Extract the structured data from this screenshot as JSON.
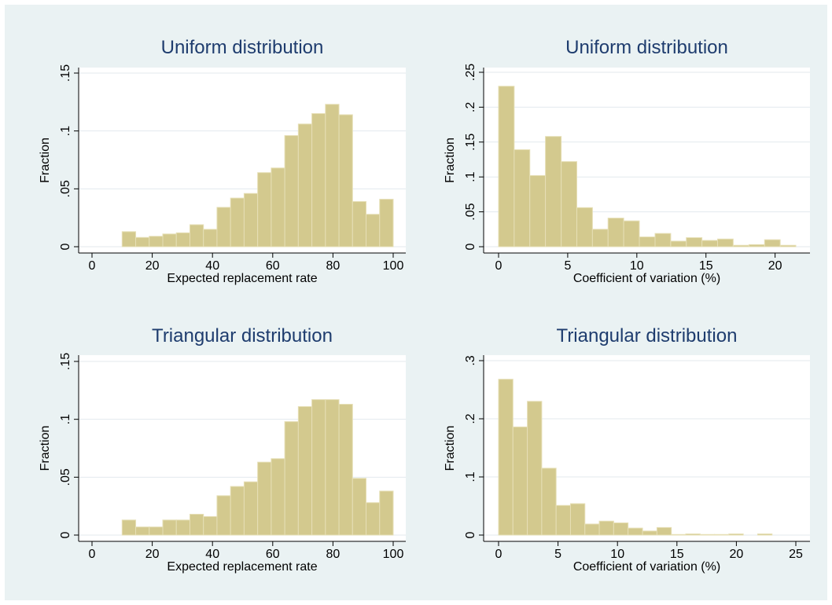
{
  "chart_data": [
    {
      "type": "histogram",
      "title": "Uniform distribution",
      "x_label": "Expected replacement rate",
      "y_label": "Fraction",
      "color": "#d3c98e",
      "bins": [
        10,
        14.5,
        19,
        23.5,
        28,
        32.5,
        37,
        41.5,
        46,
        50.5,
        55,
        59.5,
        64,
        68.5,
        73,
        77.5,
        82,
        86.5,
        91,
        95.5,
        100
      ],
      "values": [
        0.013,
        0.008,
        0.009,
        0.011,
        0.012,
        0.019,
        0.015,
        0.034,
        0.042,
        0.046,
        0.064,
        0.068,
        0.096,
        0.106,
        0.115,
        0.123,
        0.114,
        0.039,
        0.028,
        0.041
      ],
      "xlim": [
        0,
        100
      ],
      "xticks": [
        0,
        20,
        40,
        60,
        80,
        100
      ],
      "ylim": [
        0,
        0.15
      ],
      "yticks": [
        0,
        {
          "value": 0.05,
          "label": ".05"
        },
        {
          "value": 0.1,
          "label": ".1"
        },
        {
          "value": 0.15,
          "label": ".15"
        }
      ],
      "grid": true
    },
    {
      "type": "histogram",
      "title": "Uniform distribution",
      "x_label": "Coefficient of variation (%)",
      "y_label": "Fraction",
      "color": "#d3c98e",
      "bins": [
        0,
        1.13,
        2.26,
        3.39,
        4.53,
        5.66,
        6.79,
        7.92,
        9.05,
        10.18,
        11.32,
        12.45,
        13.58,
        14.71,
        15.84,
        16.97,
        18.11,
        19.24,
        20.37,
        21.5
      ],
      "values": [
        0.23,
        0.139,
        0.102,
        0.158,
        0.122,
        0.056,
        0.025,
        0.041,
        0.037,
        0.014,
        0.019,
        0.008,
        0.013,
        0.009,
        0.011,
        0.002,
        0.003,
        0.01,
        0.002
      ],
      "xlim": [
        0,
        21.5
      ],
      "xticks": [
        0,
        5,
        10,
        15,
        20
      ],
      "ylim": [
        0,
        0.25
      ],
      "yticks": [
        0,
        {
          "value": 0.05,
          "label": ".05"
        },
        {
          "value": 0.1,
          "label": ".1"
        },
        {
          "value": 0.15,
          "label": ".15"
        },
        {
          "value": 0.2,
          "label": ".2"
        },
        {
          "value": 0.25,
          "label": ".25"
        }
      ],
      "grid": true
    },
    {
      "type": "histogram",
      "title": "Triangular distribution",
      "x_label": "Expected replacement rate",
      "y_label": "Fraction",
      "color": "#d3c98e",
      "bins": [
        10,
        14.5,
        19,
        23.5,
        28,
        32.5,
        37,
        41.5,
        46,
        50.5,
        55,
        59.5,
        64,
        68.5,
        73,
        77.5,
        82,
        86.5,
        91,
        95.5,
        100
      ],
      "values": [
        0.013,
        0.007,
        0.007,
        0.013,
        0.013,
        0.018,
        0.016,
        0.034,
        0.042,
        0.046,
        0.063,
        0.066,
        0.098,
        0.111,
        0.117,
        0.117,
        0.113,
        0.049,
        0.028,
        0.038
      ],
      "xlim": [
        0,
        100
      ],
      "xticks": [
        0,
        20,
        40,
        60,
        80,
        100
      ],
      "ylim": [
        0,
        0.15
      ],
      "yticks": [
        0,
        {
          "value": 0.05,
          "label": ".05"
        },
        {
          "value": 0.1,
          "label": ".1"
        },
        {
          "value": 0.15,
          "label": ".15"
        }
      ],
      "grid": true
    },
    {
      "type": "histogram",
      "title": "Triangular distribution",
      "x_label": "Coefficient of variation (%)",
      "y_label": "Fraction",
      "color": "#d3c98e",
      "bins": [
        0,
        1.21,
        2.42,
        3.63,
        4.84,
        6.05,
        7.26,
        8.47,
        9.68,
        10.89,
        12.11,
        13.32,
        14.53,
        15.74,
        16.95,
        18.16,
        19.37,
        20.58,
        21.79,
        23
      ],
      "values": [
        0.268,
        0.186,
        0.23,
        0.115,
        0.051,
        0.054,
        0.019,
        0.024,
        0.021,
        0.012,
        0.007,
        0.013,
        0.001,
        0.002,
        0.001,
        0.001,
        0.002,
        0,
        0.002
      ],
      "xlim": [
        0,
        25
      ],
      "xticks": [
        0,
        5,
        10,
        15,
        20,
        25
      ],
      "ylim": [
        0,
        0.3
      ],
      "yticks": [
        0,
        {
          "value": 0.1,
          "label": ".1"
        },
        {
          "value": 0.2,
          "label": ".2"
        },
        {
          "value": 0.3,
          "label": ".3"
        }
      ],
      "grid": true
    }
  ]
}
